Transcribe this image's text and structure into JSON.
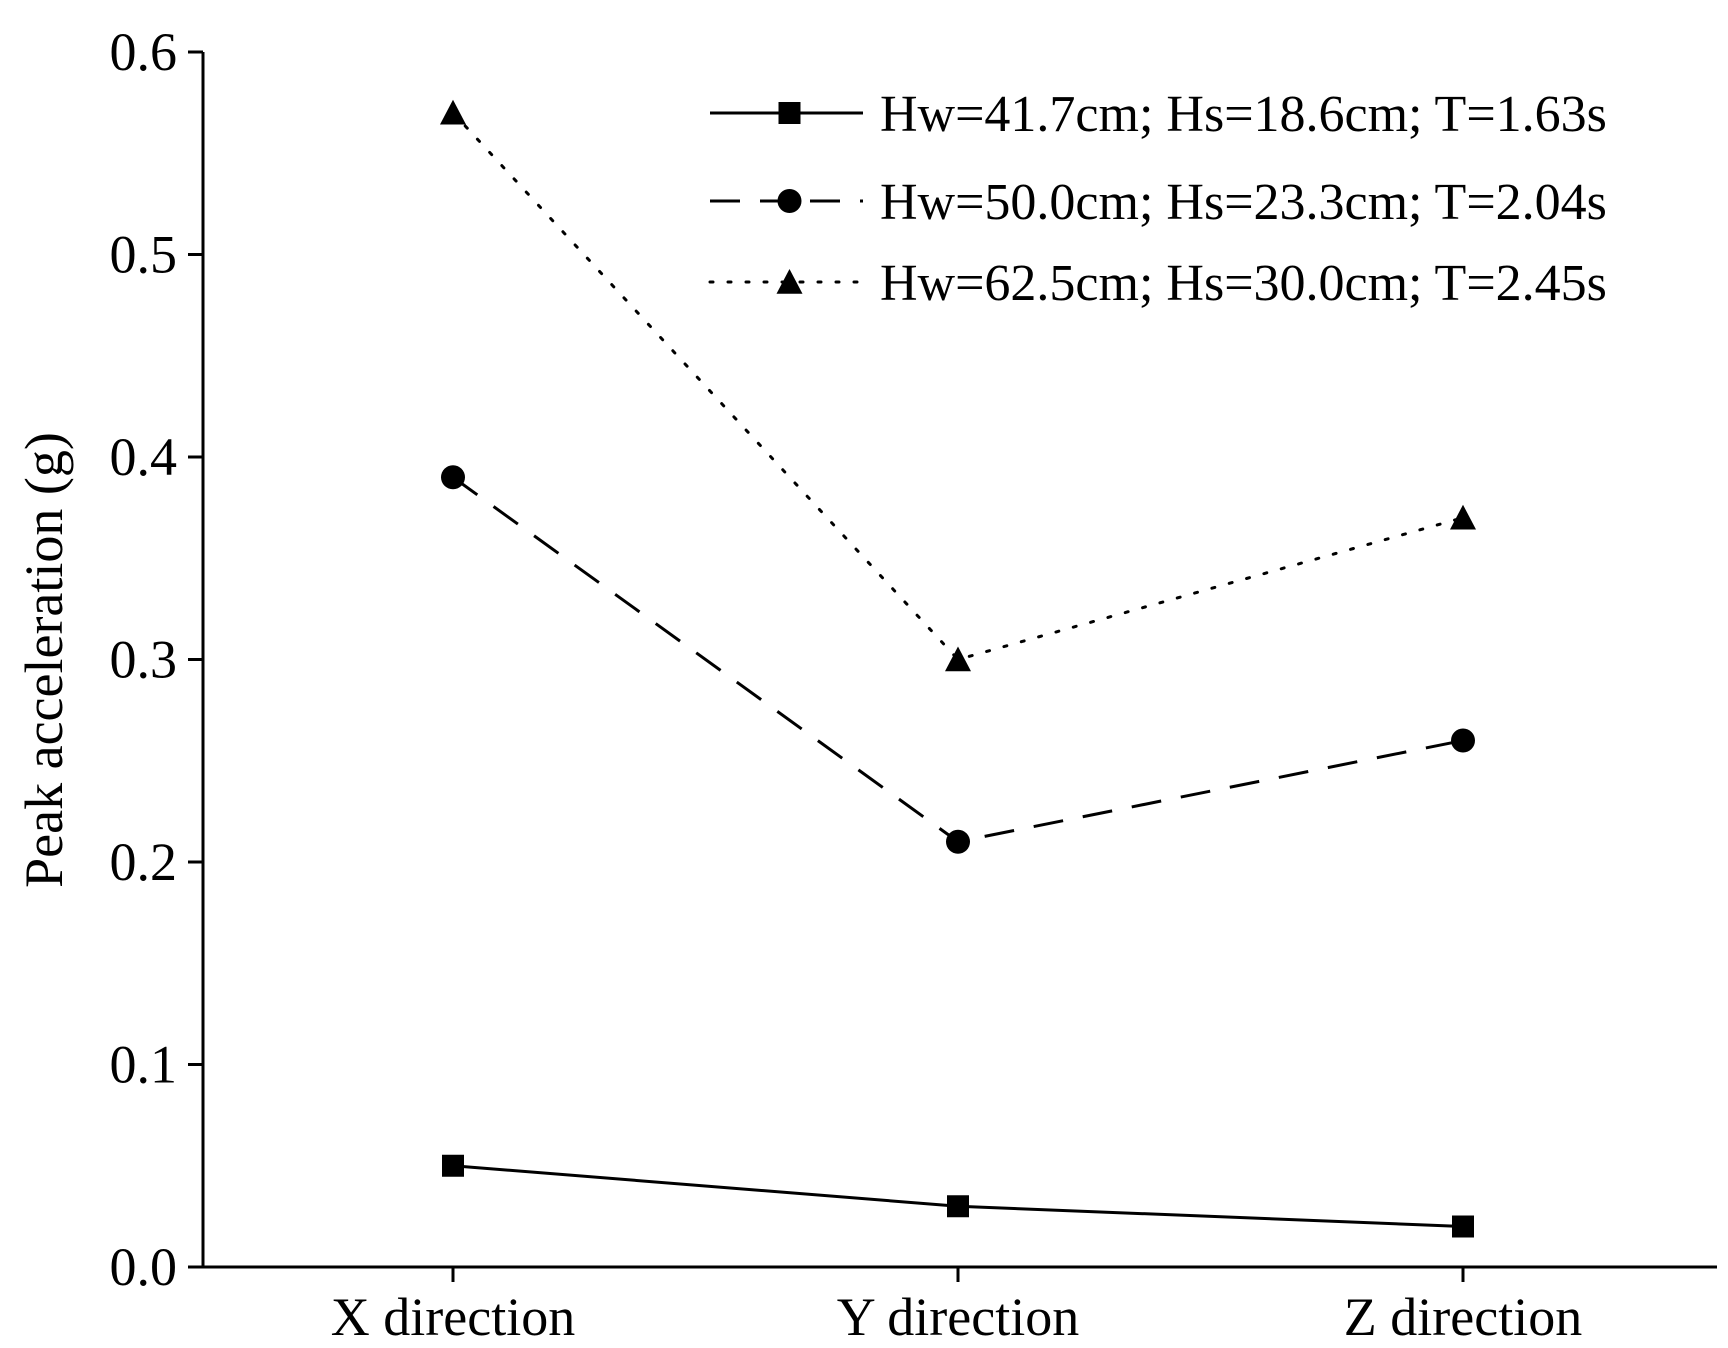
{
  "chart_data": {
    "type": "line",
    "title": "",
    "xlabel": "",
    "ylabel": "Peak acceleration (g)",
    "categories": [
      "X direction",
      "Y direction",
      "Z direction"
    ],
    "ylim": [
      0,
      0.6
    ],
    "yticks": [
      0.0,
      0.1,
      0.2,
      0.3,
      0.4,
      0.5,
      0.6
    ],
    "ytick_labels": [
      "0.0",
      "0.1",
      "0.2",
      "0.3",
      "0.4",
      "0.5",
      "0.6"
    ],
    "grid": false,
    "legend_position": "top-right",
    "series": [
      {
        "name": "Hw=41.7cm; Hs=18.6cm; T=1.63s",
        "values": [
          0.05,
          0.03,
          0.02
        ],
        "line_style": "solid",
        "marker": "square",
        "color": "#000000"
      },
      {
        "name": "Hw=50.0cm; Hs=23.3cm; T=2.04s",
        "values": [
          0.39,
          0.21,
          0.26
        ],
        "line_style": "dashed",
        "marker": "circle",
        "color": "#000000"
      },
      {
        "name": "Hw=62.5cm; Hs=30.0cm; T=2.45s",
        "values": [
          0.57,
          0.3,
          0.37
        ],
        "line_style": "dotted",
        "marker": "triangle",
        "color": "#000000"
      }
    ]
  }
}
